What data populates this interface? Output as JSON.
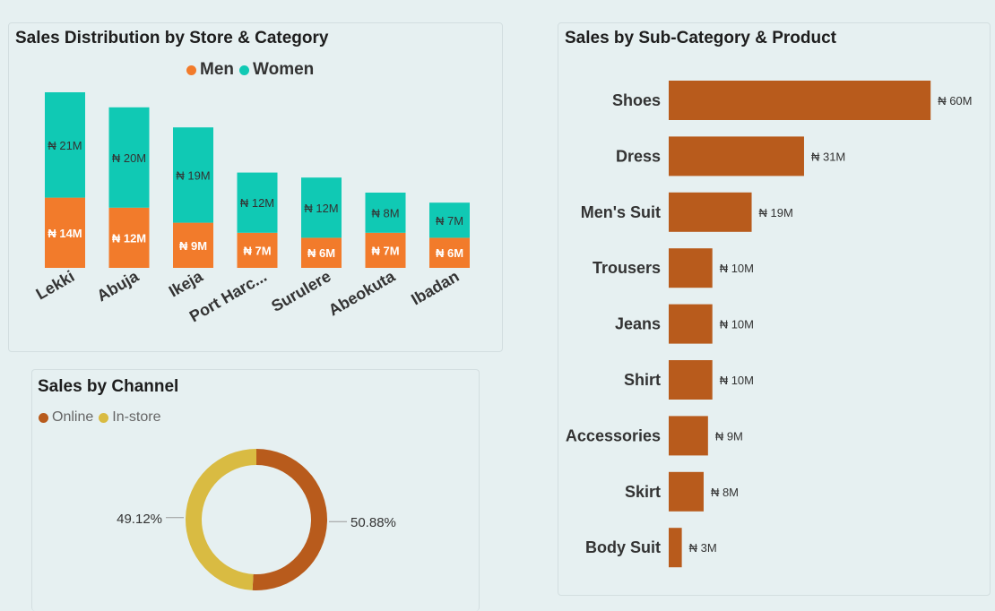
{
  "colors": {
    "men": "#f27b2b",
    "women": "#10c9b4",
    "product_bar": "#b85b1c",
    "online": "#b85b1c",
    "in_store": "#d9bb42"
  },
  "store_chart": {
    "title": "Sales Distribution by Store & Category",
    "chart_data": {
      "type": "bar",
      "stacked": true,
      "title": "Sales Distribution by Store & Category",
      "categories": [
        "Lekki",
        "Abuja",
        "Ikeja",
        "Port Harc...",
        "Surulere",
        "Abeokuta",
        "Ibadan"
      ],
      "series": [
        {
          "name": "Men",
          "values": [
            14,
            12,
            9,
            7,
            6,
            7,
            6
          ],
          "labels": [
            "₦ 14M",
            "₦ 12M",
            "₦ 9M",
            "₦ 7M",
            "₦ 6M",
            "₦ 7M",
            "₦ 6M"
          ]
        },
        {
          "name": "Women",
          "values": [
            21,
            20,
            19,
            12,
            12,
            8,
            7
          ],
          "labels": [
            "₦ 21M",
            "₦ 20M",
            "₦ 19M",
            "₦ 12M",
            "₦ 12M",
            "₦ 8M",
            "₦ 7M"
          ]
        }
      ],
      "unit": "₦ M",
      "legend": "top-center"
    }
  },
  "channel_chart": {
    "title": "Sales by Channel",
    "chart_data": {
      "type": "pie",
      "donut": true,
      "title": "Sales by Channel",
      "categories": [
        "Online",
        "In-store"
      ],
      "values": [
        50.88,
        49.12
      ],
      "labels": [
        "50.88%",
        "49.12%"
      ],
      "legend": "top-left"
    }
  },
  "product_chart": {
    "title": "Sales by Sub-Category & Product",
    "chart_data": {
      "type": "bar",
      "orientation": "horizontal",
      "title": "Sales by Sub-Category & Product",
      "categories": [
        "Shoes",
        "Dress",
        "Men's Suit",
        "Trousers",
        "Jeans",
        "Shirt",
        "Accessories",
        "Skirt",
        "Body Suit"
      ],
      "values": [
        60,
        31,
        19,
        10,
        10,
        10,
        9,
        8,
        3
      ],
      "labels": [
        "₦ 60M",
        "₦ 31M",
        "₦ 19M",
        "₦ 10M",
        "₦ 10M",
        "₦ 10M",
        "₦ 9M",
        "₦ 8M",
        "₦ 3M"
      ],
      "unit": "₦ M"
    }
  }
}
